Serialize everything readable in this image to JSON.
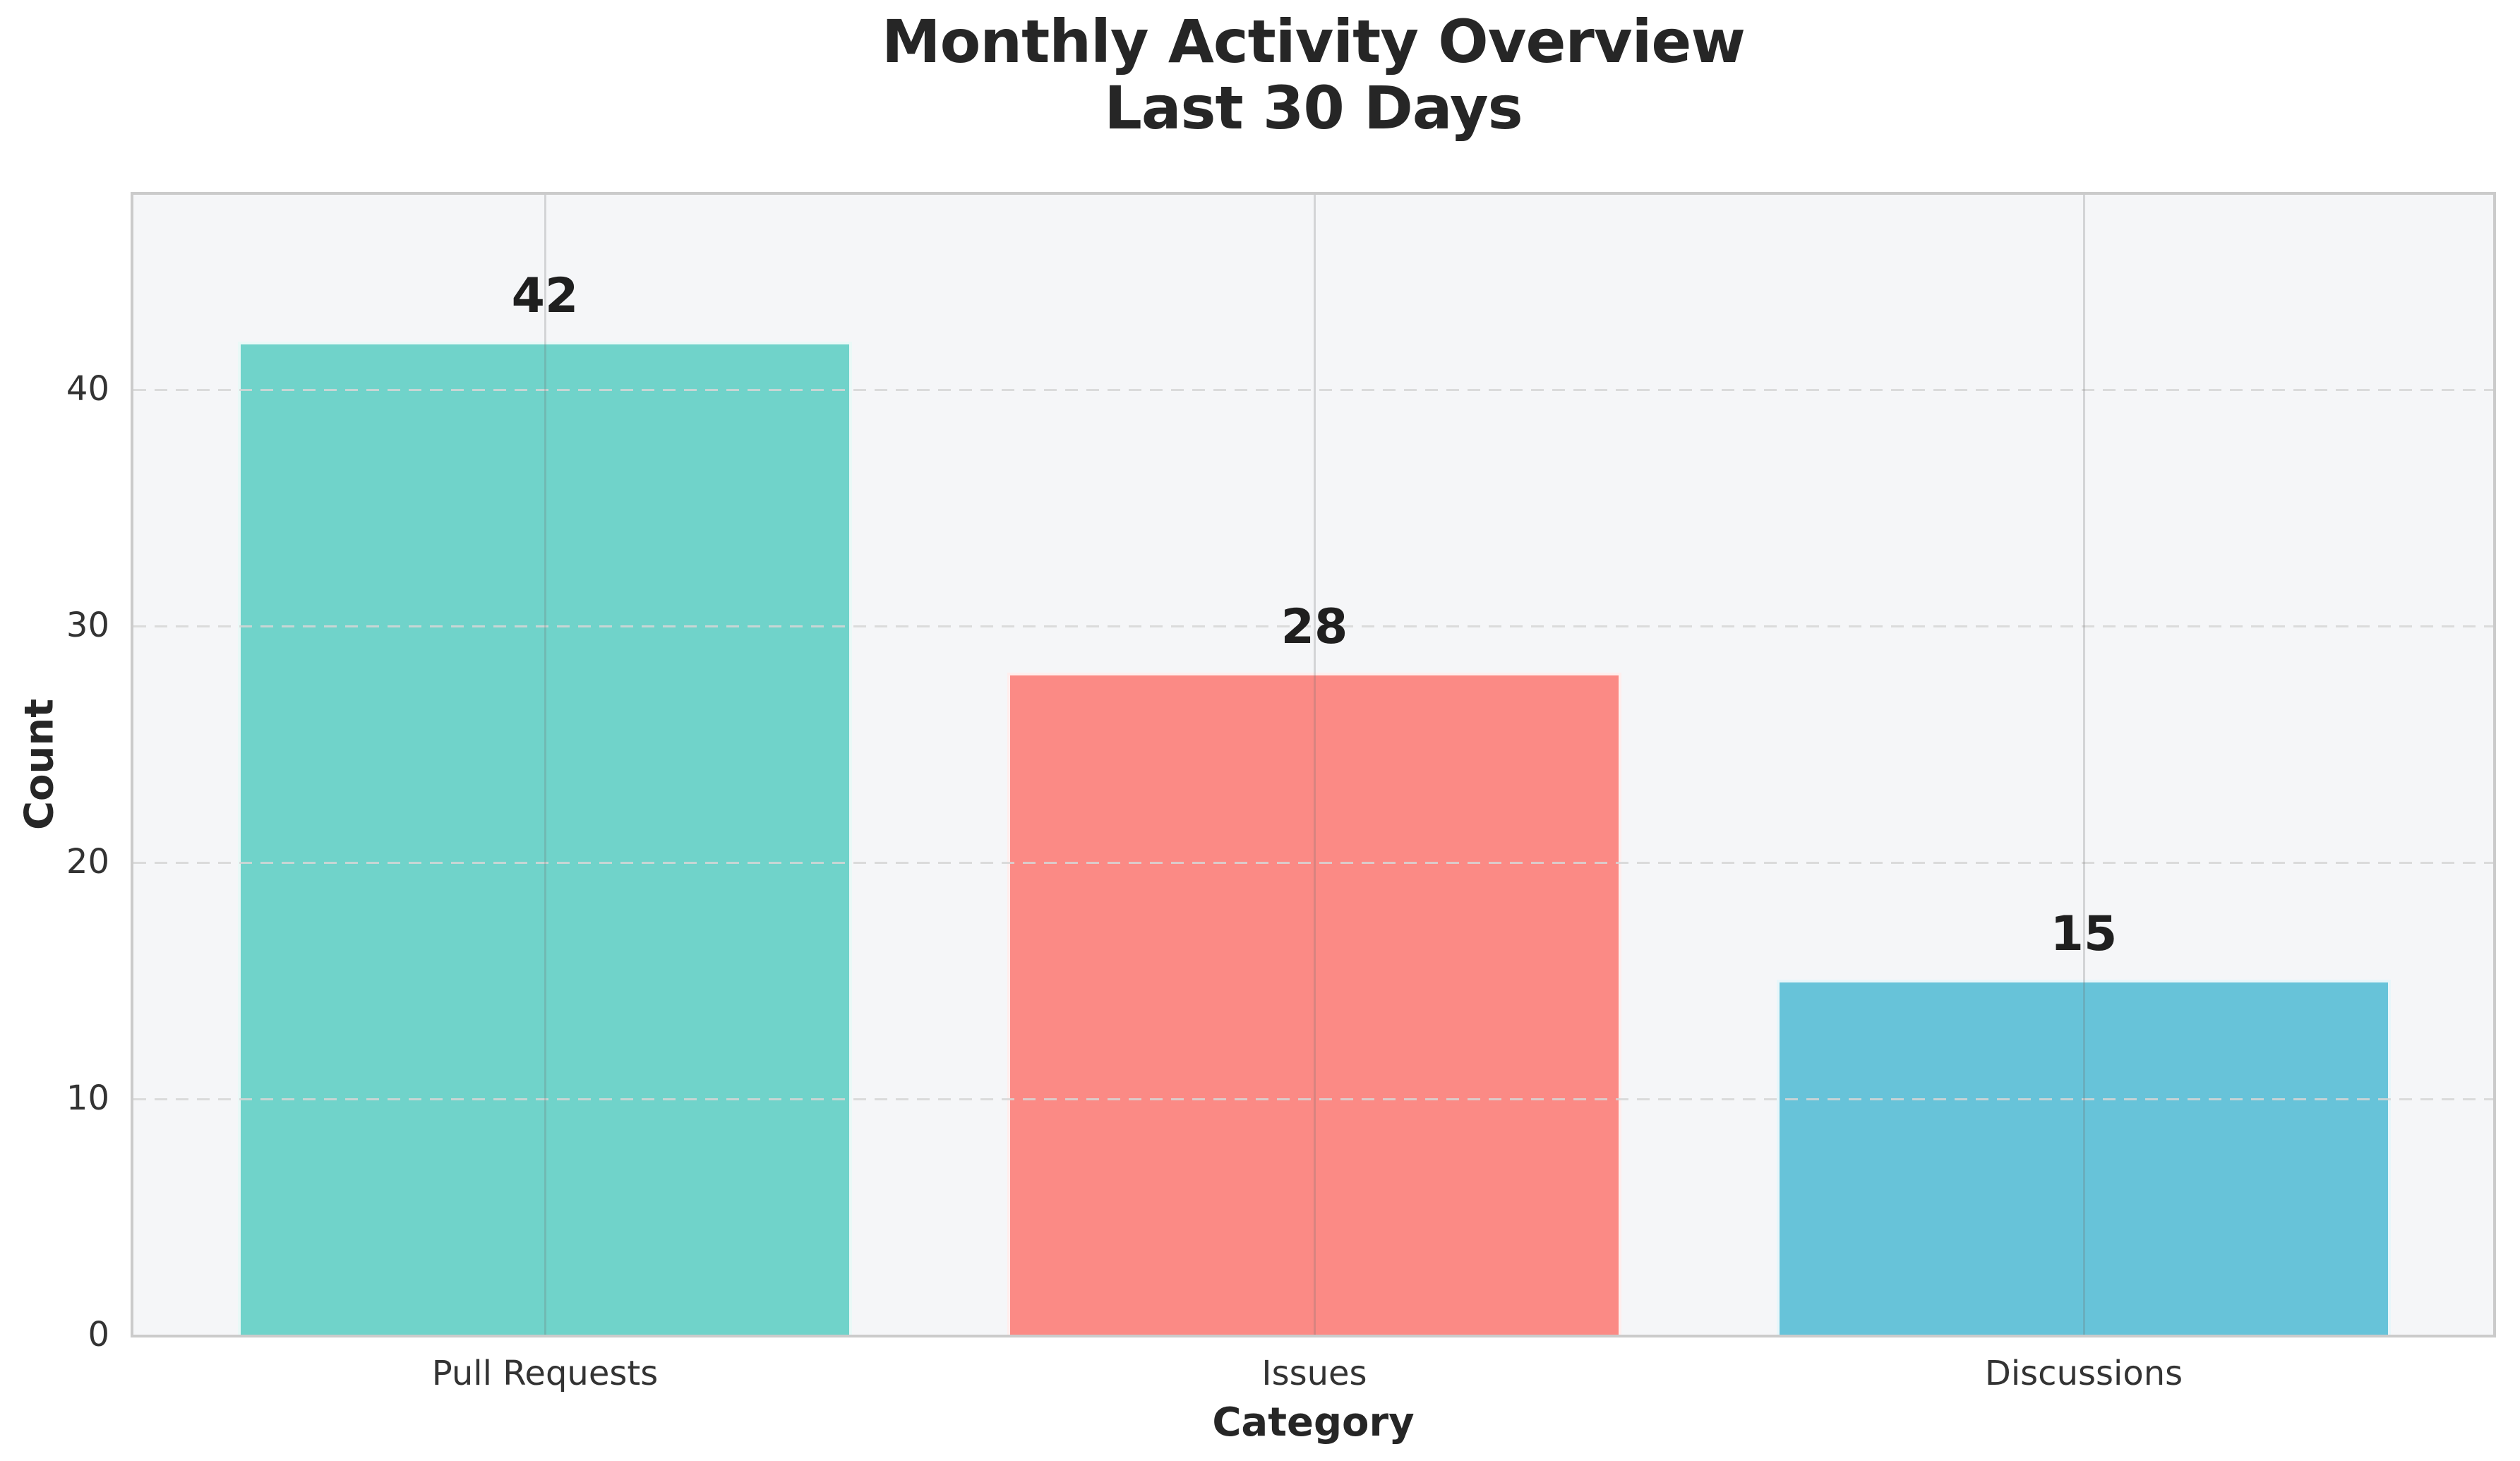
{
  "chart_data": {
    "type": "bar",
    "title": "Monthly Activity Overview",
    "subtitle": "Last 30 Days",
    "xlabel": "Category",
    "ylabel": "Count",
    "categories": [
      "Pull Requests",
      "Issues",
      "Discussions"
    ],
    "values": [
      42,
      28,
      15
    ],
    "value_labels": [
      "42",
      "28",
      "15"
    ],
    "bar_colors": [
      "#70d3ca",
      "#fb8a85",
      "#67c3d9"
    ],
    "yticks": [
      0,
      10,
      20,
      30,
      40
    ],
    "ylim": [
      0,
      48.2
    ],
    "grid": "horizontal dashed and vertical solid gridlines",
    "legend": "none",
    "plot_bg": "#f5f6f8",
    "spine_color": "#cbcbcb"
  }
}
